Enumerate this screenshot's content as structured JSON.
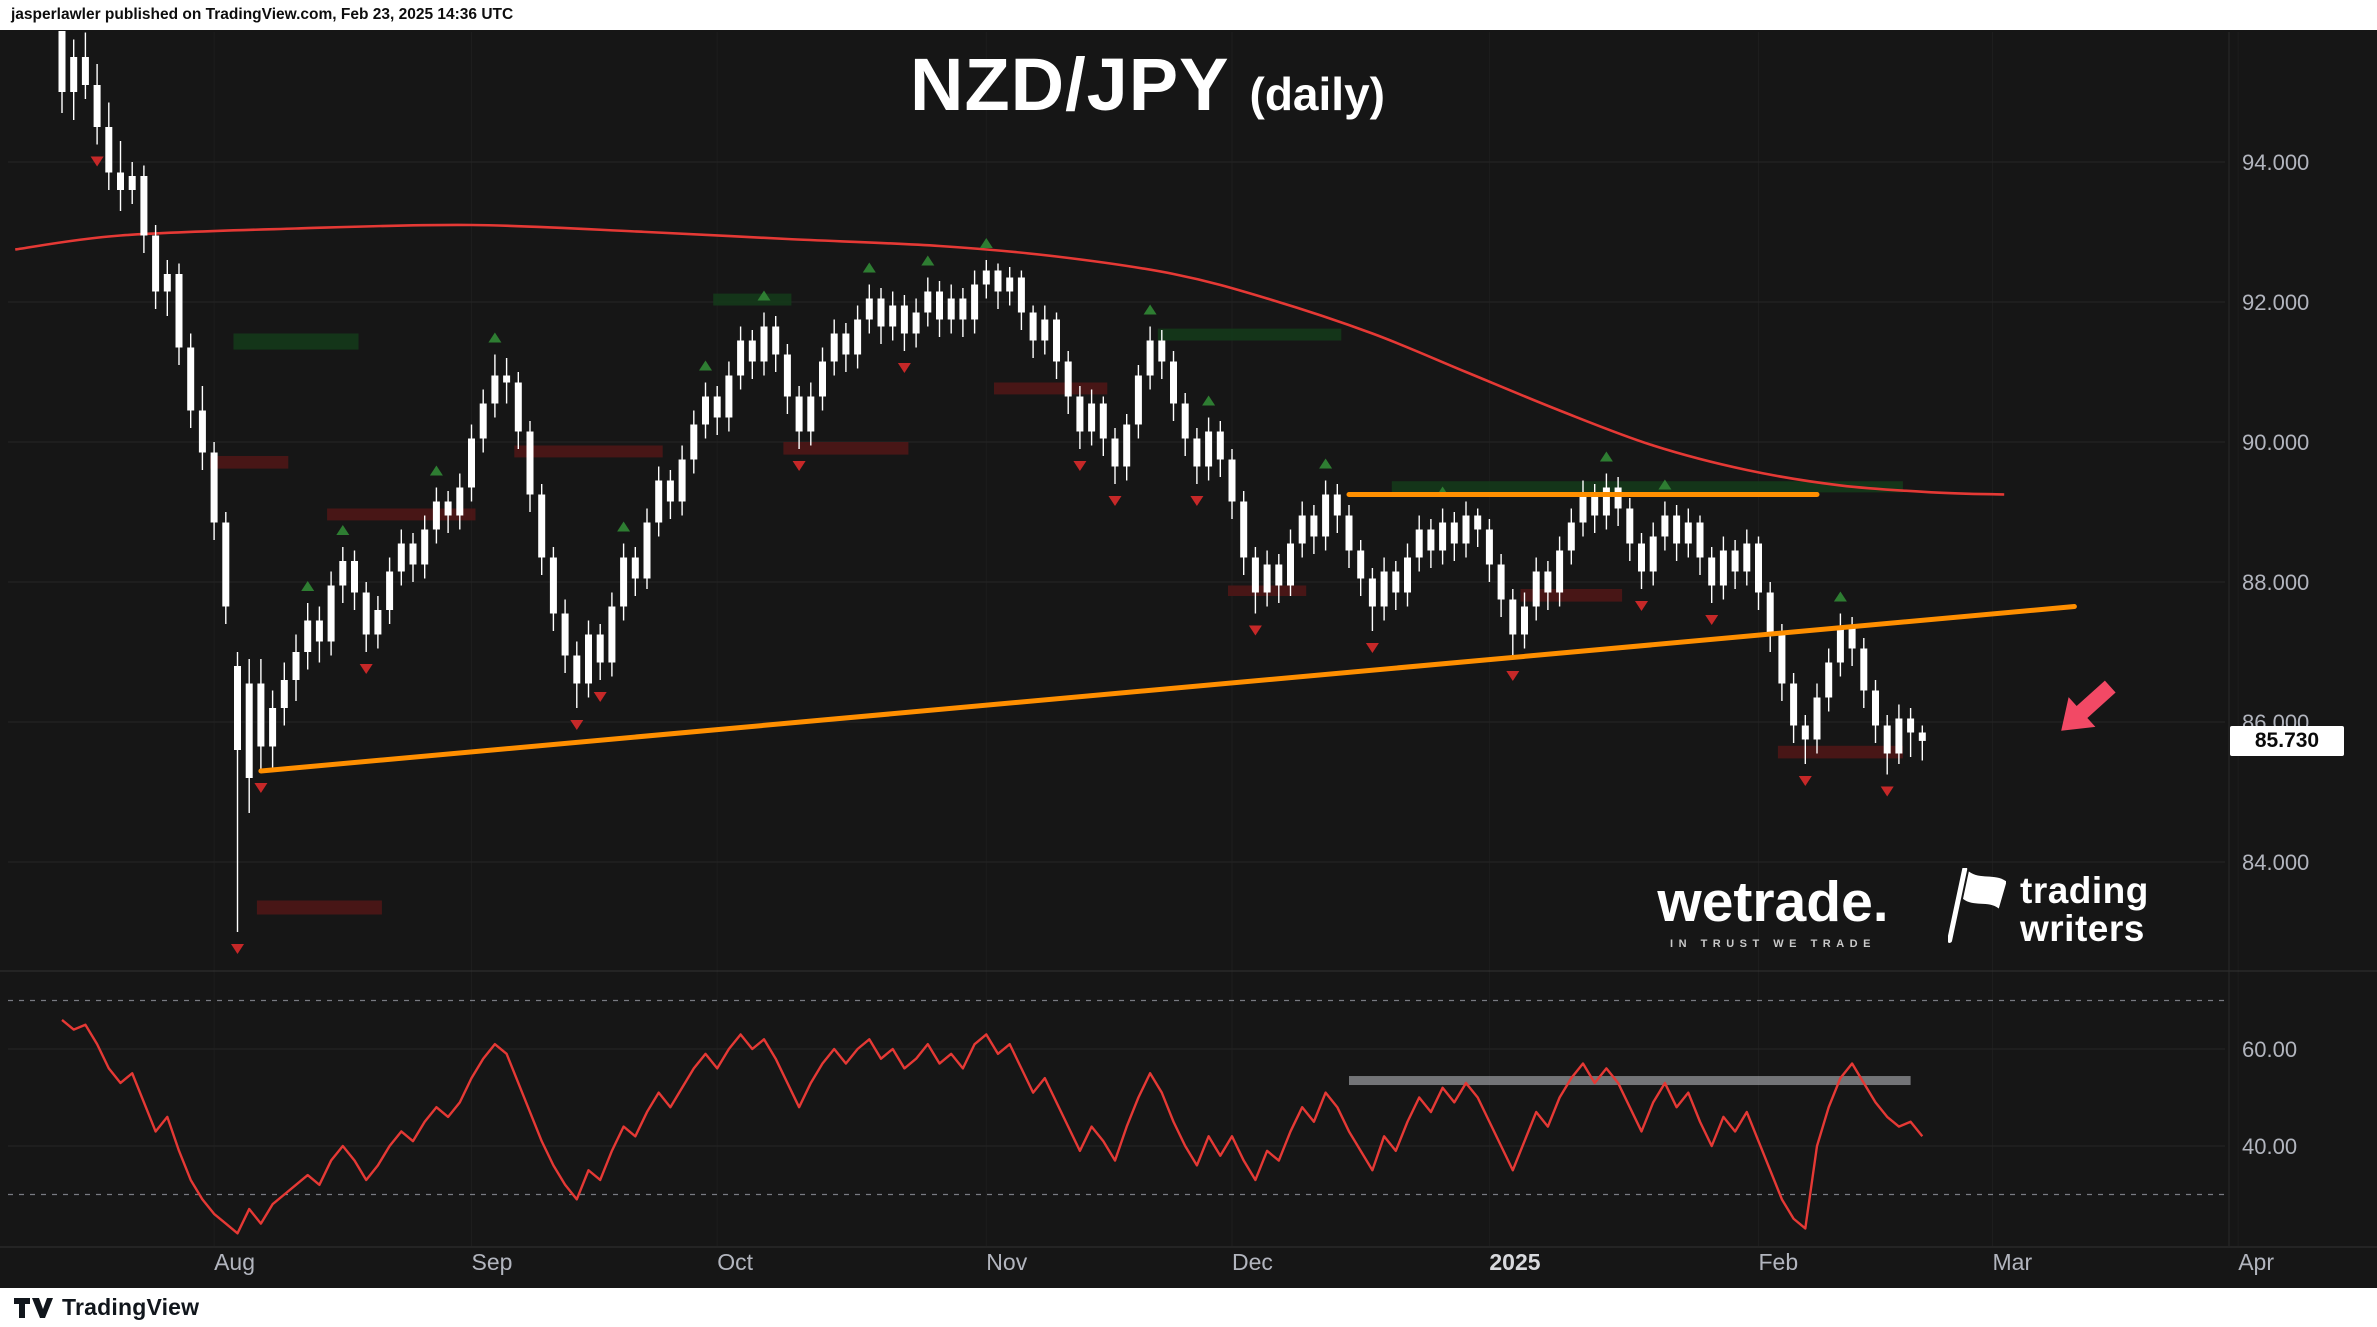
{
  "attribution": {
    "text": "jasperlawler published on TradingView.com, Feb 23, 2025 14:36 UTC"
  },
  "title": {
    "symbol": "NZD/JPY",
    "timeframe": "(daily)"
  },
  "watermarks": {
    "wetrade": {
      "name": "wetrade.",
      "tagline": "IN TRUST WE TRADE"
    },
    "tradingwriters": {
      "line1": "trading",
      "line2": "writers"
    }
  },
  "footer": {
    "logo_text": "TradingView"
  },
  "price_axis": {
    "ticks": [
      {
        "label": "94.000",
        "value": 94
      },
      {
        "label": "92.000",
        "value": 92
      },
      {
        "label": "90.000",
        "value": 90
      },
      {
        "label": "88.000",
        "value": 88
      },
      {
        "label": "86.000",
        "value": 86
      },
      {
        "label": "84.000",
        "value": 84
      }
    ],
    "last_price_label": "85.730",
    "last_price": 85.73
  },
  "rsi_axis": {
    "ticks": [
      {
        "label": "60.00",
        "value": 60
      },
      {
        "label": "40.00",
        "value": 40
      }
    ],
    "dashed_levels": [
      70,
      30
    ]
  },
  "time_axis": {
    "labels": [
      {
        "text": "Aug",
        "i": 13
      },
      {
        "text": "Sep",
        "i": 35
      },
      {
        "text": "Oct",
        "i": 56
      },
      {
        "text": "Nov",
        "i": 79
      },
      {
        "text": "Dec",
        "i": 100
      },
      {
        "text": "2025",
        "i": 122,
        "year": true
      },
      {
        "text": "Feb",
        "i": 145
      },
      {
        "text": "Mar",
        "i": 165
      },
      {
        "text": "Apr",
        "i": 186
      }
    ]
  },
  "chart_data": {
    "type": "candlestick",
    "title": "NZD/JPY (daily)",
    "ylim": [
      82.5,
      95.9
    ],
    "price_gridlines": [
      94,
      92,
      90,
      88,
      86,
      84
    ],
    "last_price": 85.73,
    "ohlc": [
      [
        96.8,
        97.0,
        94.7,
        95.0
      ],
      [
        95.0,
        95.75,
        94.6,
        95.5
      ],
      [
        95.5,
        95.85,
        94.9,
        95.1
      ],
      [
        95.1,
        95.4,
        94.25,
        94.5
      ],
      [
        94.5,
        94.85,
        93.6,
        93.85
      ],
      [
        93.85,
        94.3,
        93.3,
        93.6
      ],
      [
        93.6,
        94.0,
        93.4,
        93.8
      ],
      [
        93.8,
        93.95,
        92.7,
        92.95
      ],
      [
        92.95,
        93.1,
        91.9,
        92.15
      ],
      [
        92.15,
        92.6,
        91.8,
        92.4
      ],
      [
        92.4,
        92.55,
        91.1,
        91.35
      ],
      [
        91.35,
        91.55,
        90.2,
        90.45
      ],
      [
        90.45,
        90.8,
        89.6,
        89.85
      ],
      [
        89.85,
        90.0,
        88.6,
        88.85
      ],
      [
        88.85,
        89.0,
        87.4,
        87.65
      ],
      [
        86.8,
        87.0,
        83.0,
        85.6
      ],
      [
        85.2,
        86.9,
        84.7,
        86.55
      ],
      [
        86.55,
        86.9,
        85.3,
        85.65
      ],
      [
        85.65,
        86.45,
        85.35,
        86.2
      ],
      [
        86.2,
        86.85,
        85.95,
        86.6
      ],
      [
        86.6,
        87.25,
        86.3,
        87.0
      ],
      [
        87.0,
        87.7,
        86.75,
        87.45
      ],
      [
        87.45,
        87.65,
        86.85,
        87.15
      ],
      [
        87.15,
        88.15,
        86.95,
        87.95
      ],
      [
        87.95,
        88.5,
        87.7,
        88.3
      ],
      [
        88.3,
        88.45,
        87.6,
        87.85
      ],
      [
        87.85,
        88.0,
        87.0,
        87.25
      ],
      [
        87.25,
        87.8,
        87.05,
        87.6
      ],
      [
        87.6,
        88.35,
        87.4,
        88.15
      ],
      [
        88.15,
        88.75,
        87.95,
        88.55
      ],
      [
        88.55,
        88.7,
        88.0,
        88.25
      ],
      [
        88.25,
        88.95,
        88.05,
        88.75
      ],
      [
        88.75,
        89.35,
        88.55,
        89.15
      ],
      [
        89.15,
        89.3,
        88.7,
        88.95
      ],
      [
        88.95,
        89.55,
        88.75,
        89.35
      ],
      [
        89.35,
        90.25,
        89.15,
        90.05
      ],
      [
        90.05,
        90.75,
        89.85,
        90.55
      ],
      [
        90.55,
        91.25,
        90.35,
        90.95
      ],
      [
        90.95,
        91.2,
        90.55,
        90.85
      ],
      [
        90.85,
        91.0,
        89.9,
        90.15
      ],
      [
        90.15,
        90.3,
        89.0,
        89.25
      ],
      [
        89.25,
        89.4,
        88.1,
        88.35
      ],
      [
        88.35,
        88.5,
        87.3,
        87.55
      ],
      [
        87.55,
        87.75,
        86.7,
        86.95
      ],
      [
        86.95,
        87.15,
        86.2,
        86.55
      ],
      [
        86.55,
        87.45,
        86.35,
        87.25
      ],
      [
        87.25,
        87.4,
        86.6,
        86.85
      ],
      [
        86.85,
        87.85,
        86.65,
        87.65
      ],
      [
        87.65,
        88.55,
        87.45,
        88.35
      ],
      [
        88.35,
        88.5,
        87.8,
        88.05
      ],
      [
        88.05,
        89.05,
        87.9,
        88.85
      ],
      [
        88.85,
        89.65,
        88.65,
        89.45
      ],
      [
        89.45,
        89.6,
        88.9,
        89.15
      ],
      [
        89.15,
        89.95,
        88.95,
        89.75
      ],
      [
        89.75,
        90.45,
        89.55,
        90.25
      ],
      [
        90.25,
        90.85,
        90.05,
        90.65
      ],
      [
        90.65,
        90.8,
        90.1,
        90.35
      ],
      [
        90.35,
        91.15,
        90.15,
        90.95
      ],
      [
        90.95,
        91.65,
        90.75,
        91.45
      ],
      [
        91.45,
        91.6,
        90.9,
        91.15
      ],
      [
        91.15,
        91.85,
        90.95,
        91.65
      ],
      [
        91.65,
        91.8,
        91.0,
        91.25
      ],
      [
        91.25,
        91.4,
        90.4,
        90.65
      ],
      [
        90.65,
        90.8,
        89.9,
        90.15
      ],
      [
        90.15,
        90.85,
        89.95,
        90.65
      ],
      [
        90.65,
        91.35,
        90.45,
        91.15
      ],
      [
        91.15,
        91.75,
        90.95,
        91.55
      ],
      [
        91.55,
        91.7,
        91.0,
        91.25
      ],
      [
        91.25,
        91.95,
        91.05,
        91.75
      ],
      [
        91.75,
        92.25,
        91.55,
        92.05
      ],
      [
        92.05,
        92.2,
        91.4,
        91.65
      ],
      [
        91.65,
        92.15,
        91.45,
        91.95
      ],
      [
        91.95,
        92.1,
        91.3,
        91.55
      ],
      [
        91.55,
        92.05,
        91.35,
        91.85
      ],
      [
        91.85,
        92.35,
        91.65,
        92.15
      ],
      [
        92.15,
        92.3,
        91.5,
        91.75
      ],
      [
        91.75,
        92.25,
        91.55,
        92.05
      ],
      [
        92.05,
        92.2,
        91.5,
        91.75
      ],
      [
        91.75,
        92.45,
        91.55,
        92.25
      ],
      [
        92.25,
        92.6,
        92.05,
        92.45
      ],
      [
        92.45,
        92.55,
        91.9,
        92.15
      ],
      [
        92.15,
        92.5,
        91.95,
        92.35
      ],
      [
        92.35,
        92.45,
        91.6,
        91.85
      ],
      [
        91.85,
        91.95,
        91.2,
        91.45
      ],
      [
        91.45,
        91.95,
        91.25,
        91.75
      ],
      [
        91.75,
        91.85,
        90.9,
        91.15
      ],
      [
        91.15,
        91.3,
        90.4,
        90.65
      ],
      [
        90.65,
        90.8,
        89.9,
        90.15
      ],
      [
        90.15,
        90.75,
        89.95,
        90.55
      ],
      [
        90.55,
        90.65,
        89.8,
        90.05
      ],
      [
        90.05,
        90.2,
        89.4,
        89.65
      ],
      [
        89.65,
        90.4,
        89.45,
        90.25
      ],
      [
        90.25,
        91.1,
        90.05,
        90.95
      ],
      [
        90.95,
        91.65,
        90.75,
        91.45
      ],
      [
        91.45,
        91.6,
        90.9,
        91.15
      ],
      [
        91.15,
        91.3,
        90.3,
        90.55
      ],
      [
        90.55,
        90.7,
        89.8,
        90.05
      ],
      [
        90.05,
        90.2,
        89.4,
        89.65
      ],
      [
        89.65,
        90.35,
        89.45,
        90.15
      ],
      [
        90.15,
        90.3,
        89.5,
        89.75
      ],
      [
        89.75,
        89.9,
        88.9,
        89.15
      ],
      [
        89.15,
        89.3,
        88.1,
        88.35
      ],
      [
        88.35,
        88.5,
        87.55,
        87.85
      ],
      [
        87.85,
        88.45,
        87.65,
        88.25
      ],
      [
        88.25,
        88.4,
        87.7,
        87.95
      ],
      [
        87.95,
        88.75,
        87.8,
        88.55
      ],
      [
        88.55,
        89.15,
        88.35,
        88.95
      ],
      [
        88.95,
        89.1,
        88.4,
        88.65
      ],
      [
        88.65,
        89.45,
        88.45,
        89.25
      ],
      [
        89.25,
        89.4,
        88.7,
        88.95
      ],
      [
        88.95,
        89.1,
        88.2,
        88.45
      ],
      [
        88.45,
        88.6,
        87.8,
        88.05
      ],
      [
        88.05,
        88.2,
        87.3,
        87.65
      ],
      [
        87.65,
        88.35,
        87.45,
        88.15
      ],
      [
        88.15,
        88.3,
        87.6,
        87.85
      ],
      [
        87.85,
        88.55,
        87.65,
        88.35
      ],
      [
        88.35,
        88.95,
        88.15,
        88.75
      ],
      [
        88.75,
        88.9,
        88.2,
        88.45
      ],
      [
        88.45,
        89.05,
        88.25,
        88.85
      ],
      [
        88.85,
        89.0,
        88.3,
        88.55
      ],
      [
        88.55,
        89.15,
        88.35,
        88.95
      ],
      [
        88.95,
        89.05,
        88.5,
        88.75
      ],
      [
        88.75,
        88.9,
        88.0,
        88.25
      ],
      [
        88.25,
        88.4,
        87.5,
        87.75
      ],
      [
        87.75,
        87.9,
        86.9,
        87.25
      ],
      [
        87.25,
        87.85,
        87.05,
        87.65
      ],
      [
        87.65,
        88.35,
        87.45,
        88.15
      ],
      [
        88.15,
        88.3,
        87.6,
        87.85
      ],
      [
        87.85,
        88.65,
        87.65,
        88.45
      ],
      [
        88.45,
        89.05,
        88.25,
        88.85
      ],
      [
        88.85,
        89.45,
        88.65,
        89.25
      ],
      [
        89.25,
        89.4,
        88.7,
        88.95
      ],
      [
        88.95,
        89.55,
        88.75,
        89.35
      ],
      [
        89.35,
        89.5,
        88.8,
        89.05
      ],
      [
        89.05,
        89.2,
        88.3,
        88.55
      ],
      [
        88.55,
        88.7,
        87.9,
        88.15
      ],
      [
        88.15,
        88.85,
        87.95,
        88.65
      ],
      [
        88.65,
        89.15,
        88.45,
        88.95
      ],
      [
        88.95,
        89.1,
        88.3,
        88.55
      ],
      [
        88.55,
        89.05,
        88.35,
        88.85
      ],
      [
        88.85,
        88.95,
        88.1,
        88.35
      ],
      [
        88.35,
        88.5,
        87.7,
        87.95
      ],
      [
        87.95,
        88.65,
        87.75,
        88.45
      ],
      [
        88.45,
        88.6,
        87.9,
        88.15
      ],
      [
        88.15,
        88.75,
        87.95,
        88.55
      ],
      [
        88.55,
        88.65,
        87.6,
        87.85
      ],
      [
        87.85,
        88.0,
        87.0,
        87.25
      ],
      [
        87.25,
        87.4,
        86.3,
        86.55
      ],
      [
        86.55,
        86.7,
        85.7,
        85.95
      ],
      [
        85.95,
        86.1,
        85.4,
        85.75
      ],
      [
        85.75,
        86.55,
        85.55,
        86.35
      ],
      [
        86.35,
        87.05,
        86.15,
        86.85
      ],
      [
        86.85,
        87.55,
        86.65,
        87.35
      ],
      [
        87.35,
        87.5,
        86.8,
        87.05
      ],
      [
        87.05,
        87.2,
        86.2,
        86.45
      ],
      [
        86.45,
        86.6,
        85.7,
        85.95
      ],
      [
        85.95,
        86.1,
        85.25,
        85.55
      ],
      [
        85.55,
        86.25,
        85.4,
        86.05
      ],
      [
        86.05,
        86.2,
        85.5,
        85.85
      ],
      [
        85.85,
        85.95,
        85.45,
        85.73
      ]
    ],
    "overlays": {
      "ma": {
        "color": "#e53935",
        "points": [
          [
            -4,
            92.75
          ],
          [
            5,
            92.95
          ],
          [
            20,
            93.05
          ],
          [
            35,
            93.1
          ],
          [
            50,
            93.0
          ],
          [
            62,
            92.9
          ],
          [
            75,
            92.8
          ],
          [
            85,
            92.65
          ],
          [
            95,
            92.4
          ],
          [
            103,
            92.05
          ],
          [
            112,
            91.55
          ],
          [
            120,
            91.0
          ],
          [
            128,
            90.45
          ],
          [
            136,
            89.95
          ],
          [
            144,
            89.6
          ],
          [
            152,
            89.38
          ],
          [
            160,
            89.28
          ],
          [
            166,
            89.25
          ]
        ]
      },
      "trendline": {
        "color": "#ff8f00",
        "from": [
          17,
          85.3
        ],
        "to": [
          172,
          87.65
        ]
      },
      "resistance": {
        "color": "#ff8f00",
        "price": 89.25,
        "from_index": 110,
        "to_index": 150
      },
      "zones": [
        [
          15,
          25,
          91.55,
          91.32,
          "green"
        ],
        [
          13,
          19,
          89.8,
          89.62,
          "red"
        ],
        [
          23,
          35,
          89.05,
          88.88,
          "red"
        ],
        [
          17,
          27,
          83.45,
          83.25,
          "red"
        ],
        [
          39,
          51,
          89.95,
          89.78,
          "red"
        ],
        [
          56,
          62,
          92.12,
          91.95,
          "green"
        ],
        [
          62,
          72,
          90.0,
          89.82,
          "red"
        ],
        [
          80,
          89,
          90.85,
          90.68,
          "red"
        ],
        [
          94,
          109,
          91.62,
          91.45,
          "green"
        ],
        [
          100,
          106,
          87.95,
          87.8,
          "red"
        ],
        [
          125,
          133,
          87.9,
          87.72,
          "red"
        ],
        [
          114,
          157,
          89.44,
          89.28,
          "green"
        ],
        [
          147,
          157,
          85.66,
          85.48,
          "red"
        ]
      ],
      "fractals_up": [
        21,
        24,
        32,
        37,
        48,
        55,
        60,
        69,
        74,
        79,
        93,
        98,
        108,
        118,
        132,
        137,
        152
      ],
      "fractals_down": [
        3,
        15,
        17,
        26,
        44,
        46,
        63,
        72,
        87,
        90,
        97,
        102,
        112,
        124,
        135,
        141,
        149,
        156
      ],
      "arrow": {
        "x": 2082,
        "y": 712,
        "rotation": 48,
        "color": "#f24965"
      }
    },
    "rsi_panel": {
      "type": "line",
      "color": "#e53935",
      "gridlines": [
        60,
        40
      ],
      "dashed_levels": [
        70,
        30
      ],
      "range_bar": {
        "from_index": 110,
        "to_index": 158,
        "value": 53.5
      },
      "values": [
        66,
        64,
        65,
        61,
        56,
        53,
        55,
        49,
        43,
        46,
        39,
        33,
        29,
        26,
        24,
        22,
        27,
        24,
        28,
        30,
        32,
        34,
        32,
        37,
        40,
        37,
        33,
        36,
        40,
        43,
        41,
        45,
        48,
        46,
        49,
        54,
        58,
        61,
        59,
        53,
        47,
        41,
        36,
        32,
        29,
        35,
        33,
        39,
        44,
        42,
        47,
        51,
        48,
        52,
        56,
        59,
        56,
        60,
        63,
        60,
        62,
        58,
        53,
        48,
        53,
        57,
        60,
        57,
        60,
        62,
        58,
        60,
        56,
        58,
        61,
        57,
        59,
        56,
        61,
        63,
        59,
        61,
        56,
        51,
        54,
        49,
        44,
        39,
        44,
        41,
        37,
        44,
        50,
        55,
        51,
        45,
        40,
        36,
        42,
        38,
        42,
        37,
        33,
        39,
        37,
        43,
        48,
        45,
        51,
        48,
        43,
        39,
        35,
        42,
        39,
        45,
        50,
        47,
        52,
        49,
        53,
        50,
        45,
        40,
        35,
        41,
        47,
        44,
        50,
        54,
        57,
        53,
        56,
        53,
        48,
        43,
        49,
        53,
        48,
        51,
        45,
        40,
        46,
        43,
        47,
        41,
        35,
        29,
        25,
        23,
        40,
        48,
        54,
        57,
        53,
        49,
        46,
        44,
        45,
        42
      ]
    },
    "colors": {
      "background": "#161616",
      "grid": "#252525",
      "candle": "#ffffff",
      "axis_text": "#b2b5be",
      "fractal_up": "#2e7d32",
      "fractal_down": "#c62828",
      "zone_red": "#4d1717",
      "zone_green": "#15381a",
      "ma_line": "#e53935",
      "rsi_line": "#e53935",
      "trend_orange": "#ff8f00"
    }
  }
}
